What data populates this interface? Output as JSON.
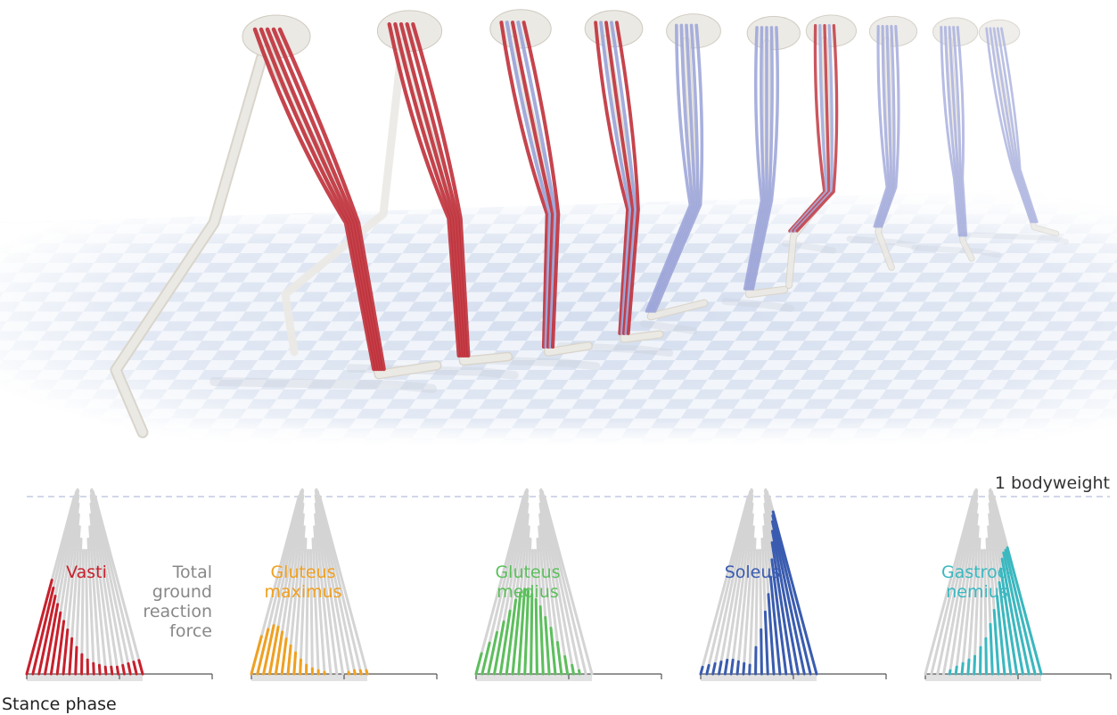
{
  "reference_line_label": "1 bodyweight",
  "grf_label_lines": [
    "Total",
    "ground",
    "reaction",
    "force"
  ],
  "x_axis_label": "Stance phase",
  "colors": {
    "grf": "#d4d4d4",
    "stance_bar": "#e2e2e2",
    "reference_line": "#b8bfdc",
    "muscle_active": "#c0303a",
    "muscle_inactive": "#9aa3d8",
    "bone": "#ebe9e4",
    "floor": "#dde6f2"
  },
  "icons": [
    "skeleton-icon",
    "floor-grid-icon"
  ],
  "panels": [
    {
      "id": "vasti",
      "label_lines": [
        "Vasti"
      ],
      "color": "#c8202c",
      "force_profile": [
        0.55,
        0.5,
        0.45,
        0.4,
        0.35,
        0.3,
        0.25,
        0.2,
        0.15,
        0.11,
        0.08,
        0.06,
        0.05,
        0.04,
        0.04,
        0.04,
        0.05,
        0.06,
        0.07,
        0.08
      ]
    },
    {
      "id": "gluteus-maximus",
      "label_lines": [
        "Gluteus",
        "maximus"
      ],
      "color": "#f0a020",
      "force_profile": [
        0.22,
        0.26,
        0.28,
        0.27,
        0.24,
        0.2,
        0.16,
        0.12,
        0.08,
        0.05,
        0.03,
        0.02,
        0.01,
        0.0,
        0.0,
        0.0,
        0.01,
        0.02,
        0.02,
        0.02
      ]
    },
    {
      "id": "gluteus-medius",
      "label_lines": [
        "Gluteus",
        "medius"
      ],
      "color": "#5cbf5c",
      "force_profile": [
        0.12,
        0.18,
        0.24,
        0.3,
        0.36,
        0.42,
        0.46,
        0.48,
        0.47,
        0.45,
        0.42,
        0.38,
        0.32,
        0.26,
        0.18,
        0.1,
        0.05,
        0.02,
        0.0,
        0.0
      ]
    },
    {
      "id": "soleus",
      "label_lines": [
        "Soleus"
      ],
      "color": "#3a5cb0",
      "force_profile": [
        0.04,
        0.05,
        0.06,
        0.07,
        0.08,
        0.08,
        0.07,
        0.06,
        0.05,
        0.15,
        0.25,
        0.35,
        0.45,
        0.55,
        0.65,
        0.75,
        0.82,
        0.88,
        0.92,
        0.95
      ]
    },
    {
      "id": "gastrocnemius",
      "label_lines": [
        "Gastroc-",
        "nemius"
      ],
      "color": "#3ab8c0",
      "force_profile": [
        0.0,
        0.0,
        0.0,
        0.0,
        0.02,
        0.04,
        0.06,
        0.08,
        0.1,
        0.15,
        0.2,
        0.28,
        0.36,
        0.44,
        0.52,
        0.6,
        0.66,
        0.7,
        0.72,
        0.74
      ]
    }
  ]
}
